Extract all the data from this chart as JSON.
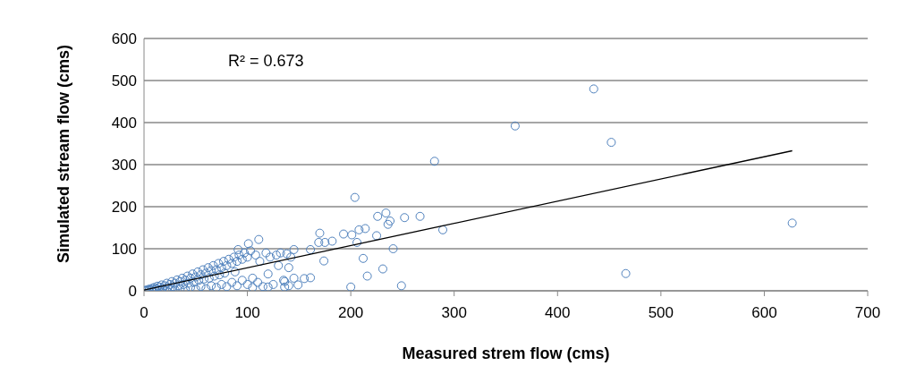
{
  "chart_data": {
    "type": "scatter",
    "xlabel": "Measured strem flow (cms)",
    "ylabel": "Simulated stream flow (cms)",
    "annotations": [
      "R² = 0.673"
    ],
    "xlim": [
      0,
      700
    ],
    "xticks": [
      0,
      100,
      200,
      300,
      400,
      500,
      600,
      700
    ],
    "ylim": [
      0,
      600
    ],
    "yticks": [
      0,
      100,
      200,
      300,
      400,
      500,
      600
    ],
    "grid": "y",
    "marker": "circle",
    "series": [
      {
        "color": "#4f81bd",
        "x": [
          1,
          2,
          3,
          5,
          5,
          7,
          8,
          10,
          10,
          12,
          13,
          15,
          15,
          17,
          18,
          20,
          20,
          22,
          23,
          25,
          25,
          27,
          28,
          30,
          30,
          32,
          33,
          35,
          35,
          37,
          38,
          40,
          40,
          42,
          43,
          45,
          45,
          47,
          48,
          50,
          50,
          52,
          53,
          55,
          55,
          57,
          58,
          60,
          60,
          62,
          63,
          65,
          65,
          67,
          68,
          70,
          70,
          72,
          73,
          75,
          75,
          77,
          78,
          80,
          80,
          82,
          85,
          85,
          87,
          88,
          90,
          90,
          92,
          95,
          95,
          97,
          100,
          100,
          103,
          105,
          108,
          110,
          112,
          115,
          118,
          120,
          122,
          125,
          128,
          130,
          132,
          135,
          138,
          140,
          142,
          145,
          281,
          204,
          226,
          234,
          238,
          236,
          252,
          267,
          289,
          193,
          201,
          206,
          208,
          214,
          225,
          241,
          212,
          231,
          216,
          200,
          249,
          170,
          169,
          175,
          182,
          174,
          161,
          111,
          101,
          91,
          145,
          140,
          155,
          161,
          149,
          136,
          136,
          120,
          105,
          435,
          359,
          452,
          627,
          466
        ],
        "values": [
          1,
          0,
          2,
          1,
          4,
          3,
          6,
          2,
          8,
          5,
          11,
          3,
          9,
          14,
          6,
          1,
          12,
          18,
          8,
          3,
          15,
          22,
          10,
          2,
          18,
          26,
          12,
          5,
          22,
          30,
          15,
          3,
          25,
          35,
          18,
          8,
          30,
          40,
          20,
          4,
          33,
          45,
          25,
          10,
          38,
          50,
          28,
          5,
          42,
          55,
          30,
          12,
          48,
          60,
          35,
          8,
          50,
          65,
          38,
          15,
          55,
          70,
          42,
          10,
          60,
          75,
          20,
          65,
          80,
          45,
          12,
          70,
          85,
          25,
          75,
          90,
          15,
          80,
          95,
          30,
          85,
          20,
          70,
          10,
          90,
          40,
          80,
          15,
          85,
          60,
          90,
          25,
          88,
          12,
          80,
          30,
          308,
          222,
          177,
          185,
          166,
          158,
          174,
          177,
          145,
          135,
          133,
          115,
          145,
          148,
          131,
          100,
          77,
          52,
          35,
          9,
          12,
          137,
          115,
          115,
          118,
          71,
          98,
          122,
          112,
          98,
          98,
          55,
          29,
          31,
          14,
          9,
          22,
          9,
          8,
          480,
          392,
          353,
          161,
          41
        ]
      },
      {
        "type": "line",
        "color": "#000000",
        "x": [
          0,
          627
        ],
        "values": [
          2,
          333
        ],
        "marker": "none"
      }
    ]
  }
}
